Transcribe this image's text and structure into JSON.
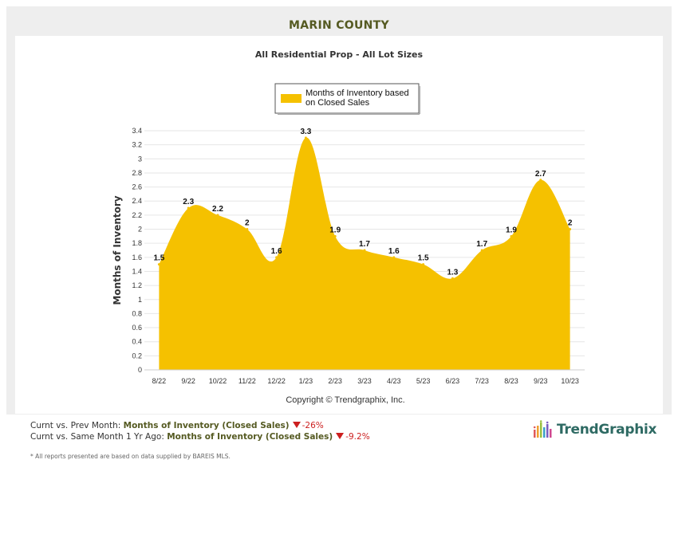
{
  "header": {
    "title": "MARIN COUNTY",
    "subtitle": "All Residential Prop - All Lot Sizes"
  },
  "chart_data": {
    "type": "area",
    "categories": [
      "8/22",
      "9/22",
      "10/22",
      "11/22",
      "12/22",
      "1/23",
      "2/23",
      "3/23",
      "4/23",
      "5/23",
      "6/23",
      "7/23",
      "8/23",
      "9/23",
      "10/23"
    ],
    "series": [
      {
        "name": "Months of Inventory based on Closed Sales",
        "values": [
          1.5,
          2.3,
          2.2,
          2.0,
          1.6,
          3.3,
          1.9,
          1.7,
          1.6,
          1.5,
          1.3,
          1.7,
          1.9,
          2.7,
          2.0
        ],
        "labels": [
          "1.5",
          "2.3",
          "2.2",
          "2",
          "1.6",
          "3.3",
          "1.9",
          "1.7",
          "1.6",
          "1.5",
          "1.3",
          "1.7",
          "1.9",
          "2.7",
          "2"
        ],
        "color": "#f5c100"
      }
    ],
    "legend_lines": [
      "Months of Inventory based",
      "on Closed Sales"
    ],
    "ylabel": "Months of Inventory",
    "xlabel": "",
    "ylim": [
      0,
      3.4
    ],
    "yticks": [
      "0",
      "0.2",
      "0.4",
      "0.6",
      "0.8",
      "1",
      "1.2",
      "1.4",
      "1.6",
      "1.8",
      "2",
      "2.2",
      "2.4",
      "2.6",
      "2.8",
      "3",
      "3.2",
      "3.4"
    ],
    "grid": true,
    "legend_position": "top-center",
    "credit": "Copyright © Trendgraphix, Inc."
  },
  "footer": {
    "row1_label": "Curnt vs. Prev Month:",
    "row1_metric": "Months of Inventory (Closed Sales)",
    "row1_change": "-26%",
    "row2_label": "Curnt vs. Same Month 1 Yr Ago:",
    "row2_metric": "Months of Inventory (Closed Sales)",
    "row2_change": "-9.2%",
    "note": "* All reports presented are based on data supplied by BAREIS MLS."
  },
  "logo": {
    "text": "TrendGraphix",
    "icon": "bar-chart-logo-icon"
  },
  "colors": {
    "accent": "#f5c100",
    "title": "#555a22",
    "down": "#cc1f1f",
    "logo": "#2e6a63"
  }
}
